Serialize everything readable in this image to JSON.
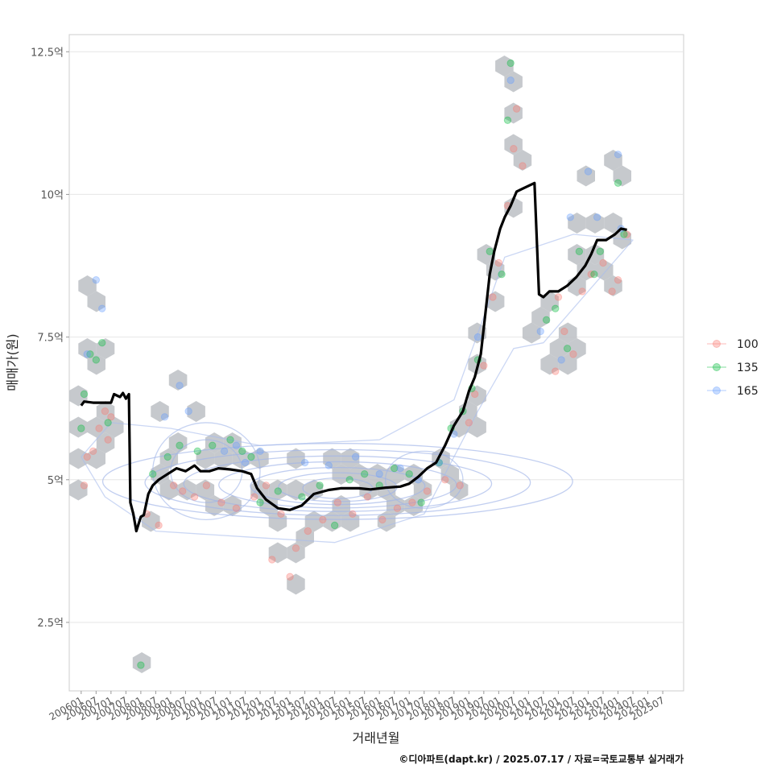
{
  "chart_data": {
    "type": "scatter",
    "title": "",
    "xlabel": "거래년월",
    "ylabel": "매매가(원)",
    "caption": "©디아파트(dapt.kr) / 2025.07.17 / 자료=국토교통부 실거래가",
    "y_unit": "억",
    "ylim": [
      1.3,
      12.8
    ],
    "y_ticks": [
      2.5,
      5,
      7.5,
      10,
      12.5
    ],
    "y_tick_labels": [
      "2.5억",
      "5억",
      "7.5억",
      "10억",
      "12.5억"
    ],
    "xlim": [
      2005.6,
      2026.2
    ],
    "x_tick_labels": [
      "200601",
      "200607",
      "200701",
      "200707",
      "200801",
      "200807",
      "200901",
      "200907",
      "201001",
      "201007",
      "201101",
      "201107",
      "201201",
      "201207",
      "201301",
      "201307",
      "201401",
      "201407",
      "201501",
      "201507",
      "201601",
      "201607",
      "201701",
      "201707",
      "201801",
      "201807",
      "201901",
      "201907",
      "202001",
      "202007",
      "202101",
      "202107",
      "202201",
      "202207",
      "202301",
      "202307",
      "202401",
      "202407",
      "202501",
      "202507"
    ],
    "legend": {
      "position": "right",
      "entries": [
        {
          "label": "100",
          "color": "#F8766D"
        },
        {
          "label": "135",
          "color": "#00BA38"
        },
        {
          "label": "165",
          "color": "#619CFF"
        }
      ]
    },
    "trend_line": {
      "name": "moving average",
      "color": "#000000",
      "points": [
        [
          2006.0,
          6.3
        ],
        [
          2006.1,
          6.37
        ],
        [
          2006.4,
          6.35
        ],
        [
          2007.0,
          6.35
        ],
        [
          2007.1,
          6.5
        ],
        [
          2007.3,
          6.45
        ],
        [
          2007.4,
          6.52
        ],
        [
          2007.5,
          6.42
        ],
        [
          2007.6,
          6.5
        ],
        [
          2007.65,
          4.6
        ],
        [
          2007.75,
          4.4
        ],
        [
          2007.85,
          4.1
        ],
        [
          2008.0,
          4.35
        ],
        [
          2008.1,
          4.38
        ],
        [
          2008.25,
          4.75
        ],
        [
          2008.4,
          4.9
        ],
        [
          2008.6,
          5.0
        ],
        [
          2008.9,
          5.1
        ],
        [
          2009.2,
          5.2
        ],
        [
          2009.5,
          5.15
        ],
        [
          2009.8,
          5.25
        ],
        [
          2010.0,
          5.15
        ],
        [
          2010.3,
          5.15
        ],
        [
          2010.6,
          5.2
        ],
        [
          2011.0,
          5.18
        ],
        [
          2011.4,
          5.15
        ],
        [
          2011.7,
          5.1
        ],
        [
          2011.9,
          4.85
        ],
        [
          2012.2,
          4.65
        ],
        [
          2012.6,
          4.5
        ],
        [
          2013.0,
          4.47
        ],
        [
          2013.4,
          4.55
        ],
        [
          2013.8,
          4.75
        ],
        [
          2014.3,
          4.82
        ],
        [
          2014.7,
          4.85
        ],
        [
          2015.3,
          4.85
        ],
        [
          2015.7,
          4.83
        ],
        [
          2016.2,
          4.86
        ],
        [
          2016.7,
          4.88
        ],
        [
          2017.0,
          4.93
        ],
        [
          2017.3,
          5.05
        ],
        [
          2017.6,
          5.2
        ],
        [
          2017.9,
          5.3
        ],
        [
          2018.2,
          5.6
        ],
        [
          2018.5,
          5.95
        ],
        [
          2018.8,
          6.2
        ],
        [
          2019.0,
          6.55
        ],
        [
          2019.2,
          6.8
        ],
        [
          2019.4,
          7.2
        ],
        [
          2019.55,
          7.9
        ],
        [
          2019.7,
          8.6
        ],
        [
          2019.85,
          9.0
        ],
        [
          2020.05,
          9.4
        ],
        [
          2020.2,
          9.6
        ],
        [
          2020.4,
          9.8
        ],
        [
          2020.6,
          10.05
        ],
        [
          2020.8,
          10.1
        ],
        [
          2021.0,
          10.15
        ],
        [
          2021.2,
          10.2
        ],
        [
          2021.35,
          8.25
        ],
        [
          2021.5,
          8.2
        ],
        [
          2021.7,
          8.3
        ],
        [
          2022.0,
          8.3
        ],
        [
          2022.3,
          8.4
        ],
        [
          2022.6,
          8.55
        ],
        [
          2022.9,
          8.75
        ],
        [
          2023.1,
          8.95
        ],
        [
          2023.3,
          9.2
        ],
        [
          2023.6,
          9.2
        ],
        [
          2023.9,
          9.3
        ],
        [
          2024.1,
          9.4
        ],
        [
          2024.3,
          9.38
        ]
      ]
    },
    "series": [
      {
        "name": "100",
        "color": "#F8766D",
        "points": [
          [
            2006.1,
            4.9
          ],
          [
            2006.2,
            5.4
          ],
          [
            2006.4,
            5.5
          ],
          [
            2006.6,
            5.9
          ],
          [
            2006.8,
            6.2
          ],
          [
            2007.0,
            6.1
          ],
          [
            2006.9,
            5.7
          ],
          [
            2008.2,
            4.4
          ],
          [
            2008.6,
            4.2
          ],
          [
            2009.1,
            4.9
          ],
          [
            2009.4,
            4.8
          ],
          [
            2009.8,
            4.7
          ],
          [
            2010.2,
            4.9
          ],
          [
            2010.7,
            4.6
          ],
          [
            2011.2,
            4.5
          ],
          [
            2011.8,
            4.7
          ],
          [
            2012.2,
            4.9
          ],
          [
            2012.4,
            3.6
          ],
          [
            2012.7,
            4.4
          ],
          [
            2013.2,
            3.8
          ],
          [
            2013.0,
            3.3
          ],
          [
            2013.6,
            4.1
          ],
          [
            2014.1,
            4.3
          ],
          [
            2014.6,
            4.6
          ],
          [
            2015.1,
            4.4
          ],
          [
            2015.6,
            4.7
          ],
          [
            2016.1,
            4.3
          ],
          [
            2016.6,
            4.5
          ],
          [
            2017.1,
            4.6
          ],
          [
            2017.6,
            4.8
          ],
          [
            2018.2,
            5.0
          ],
          [
            2018.7,
            4.9
          ],
          [
            2019.0,
            6.0
          ],
          [
            2019.2,
            6.5
          ],
          [
            2019.5,
            7.0
          ],
          [
            2019.8,
            8.2
          ],
          [
            2020.0,
            8.8
          ],
          [
            2020.3,
            9.8
          ],
          [
            2020.6,
            11.5
          ],
          [
            2020.8,
            10.5
          ],
          [
            2020.5,
            10.8
          ],
          [
            2022.0,
            8.2
          ],
          [
            2022.5,
            7.2
          ],
          [
            2022.8,
            8.3
          ],
          [
            2023.1,
            8.6
          ],
          [
            2023.5,
            8.8
          ],
          [
            2023.8,
            8.3
          ],
          [
            2024.0,
            8.5
          ],
          [
            2024.3,
            9.3
          ],
          [
            2021.9,
            6.9
          ],
          [
            2022.2,
            7.6
          ]
        ]
      },
      {
        "name": "135",
        "color": "#00BA38",
        "points": [
          [
            2006.0,
            5.9
          ],
          [
            2006.1,
            6.5
          ],
          [
            2006.3,
            7.2
          ],
          [
            2006.5,
            7.1
          ],
          [
            2006.7,
            7.4
          ],
          [
            2006.9,
            6.0
          ],
          [
            2008.0,
            1.75
          ],
          [
            2008.4,
            5.1
          ],
          [
            2008.9,
            5.4
          ],
          [
            2009.3,
            5.6
          ],
          [
            2009.9,
            5.5
          ],
          [
            2010.4,
            5.6
          ],
          [
            2011.0,
            5.7
          ],
          [
            2011.4,
            5.5
          ],
          [
            2011.7,
            5.4
          ],
          [
            2012.0,
            4.6
          ],
          [
            2012.6,
            4.8
          ],
          [
            2013.4,
            4.7
          ],
          [
            2014.0,
            4.9
          ],
          [
            2014.5,
            4.2
          ],
          [
            2015.0,
            5.0
          ],
          [
            2015.5,
            5.1
          ],
          [
            2016.0,
            4.9
          ],
          [
            2016.5,
            5.2
          ],
          [
            2017.0,
            5.1
          ],
          [
            2017.4,
            4.6
          ],
          [
            2018.0,
            5.3
          ],
          [
            2018.4,
            5.9
          ],
          [
            2018.8,
            6.2
          ],
          [
            2019.1,
            6.6
          ],
          [
            2019.3,
            7.1
          ],
          [
            2019.7,
            9.0
          ],
          [
            2020.1,
            8.6
          ],
          [
            2020.3,
            11.3
          ],
          [
            2020.4,
            12.3
          ],
          [
            2021.6,
            7.8
          ],
          [
            2021.9,
            8.0
          ],
          [
            2022.3,
            7.3
          ],
          [
            2022.7,
            9.0
          ],
          [
            2023.2,
            8.6
          ],
          [
            2023.4,
            9.0
          ],
          [
            2024.0,
            10.2
          ],
          [
            2024.2,
            9.3
          ]
        ]
      },
      {
        "name": "165",
        "color": "#619CFF",
        "points": [
          [
            2006.2,
            7.2
          ],
          [
            2006.5,
            8.5
          ],
          [
            2006.7,
            8.0
          ],
          [
            2008.8,
            6.1
          ],
          [
            2009.3,
            6.65
          ],
          [
            2009.6,
            6.2
          ],
          [
            2010.8,
            5.5
          ],
          [
            2011.2,
            5.6
          ],
          [
            2011.5,
            5.3
          ],
          [
            2012.0,
            5.5
          ],
          [
            2013.5,
            5.3
          ],
          [
            2014.3,
            5.25
          ],
          [
            2015.2,
            5.4
          ],
          [
            2016.0,
            5.1
          ],
          [
            2016.7,
            5.2
          ],
          [
            2017.3,
            5.0
          ],
          [
            2018.0,
            5.3
          ],
          [
            2018.5,
            5.8
          ],
          [
            2019.3,
            7.5
          ],
          [
            2020.4,
            12.0
          ],
          [
            2021.4,
            7.6
          ],
          [
            2022.1,
            7.1
          ],
          [
            2022.4,
            9.6
          ],
          [
            2023.0,
            10.4
          ],
          [
            2023.3,
            9.6
          ],
          [
            2024.0,
            10.7
          ],
          [
            2024.1,
            9.4
          ]
        ]
      }
    ]
  }
}
